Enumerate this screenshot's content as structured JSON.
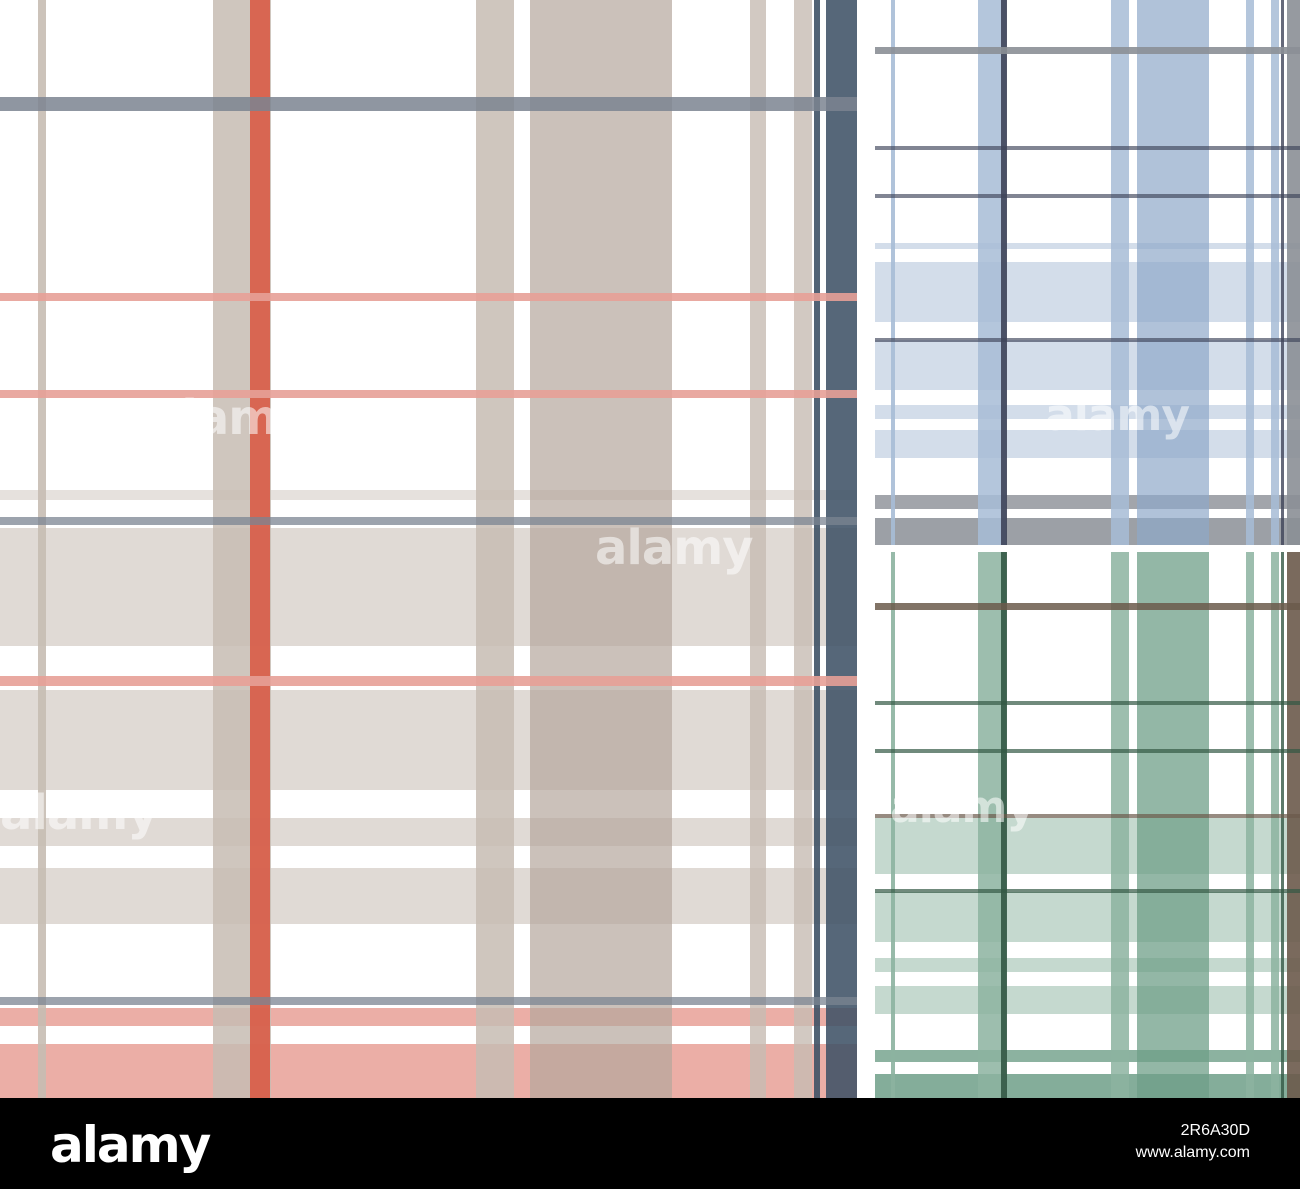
{
  "footer": {
    "logo": "alamy",
    "image_id": "2R6A30D",
    "site": "www.alamy.com"
  },
  "watermark": {
    "text": "alamy",
    "tile_letter": "a"
  },
  "palettes": {
    "main": {
      "band": "#c7bcb3",
      "band_dark": "#b5a79c",
      "accent": "#d9553f",
      "accent_light": "#e7a097",
      "navy": "#3f5266",
      "gray_line": "#7b8491"
    },
    "blue": {
      "band": "#a7bcd6",
      "band_dark": "#8ea8c9",
      "line": "#3e4459",
      "gray_line": "#8b8f96"
    },
    "green": {
      "band": "#8cb3a0",
      "band_dark": "#6f9f88",
      "line": "#335845",
      "brown_line": "#6b5a4b"
    }
  }
}
